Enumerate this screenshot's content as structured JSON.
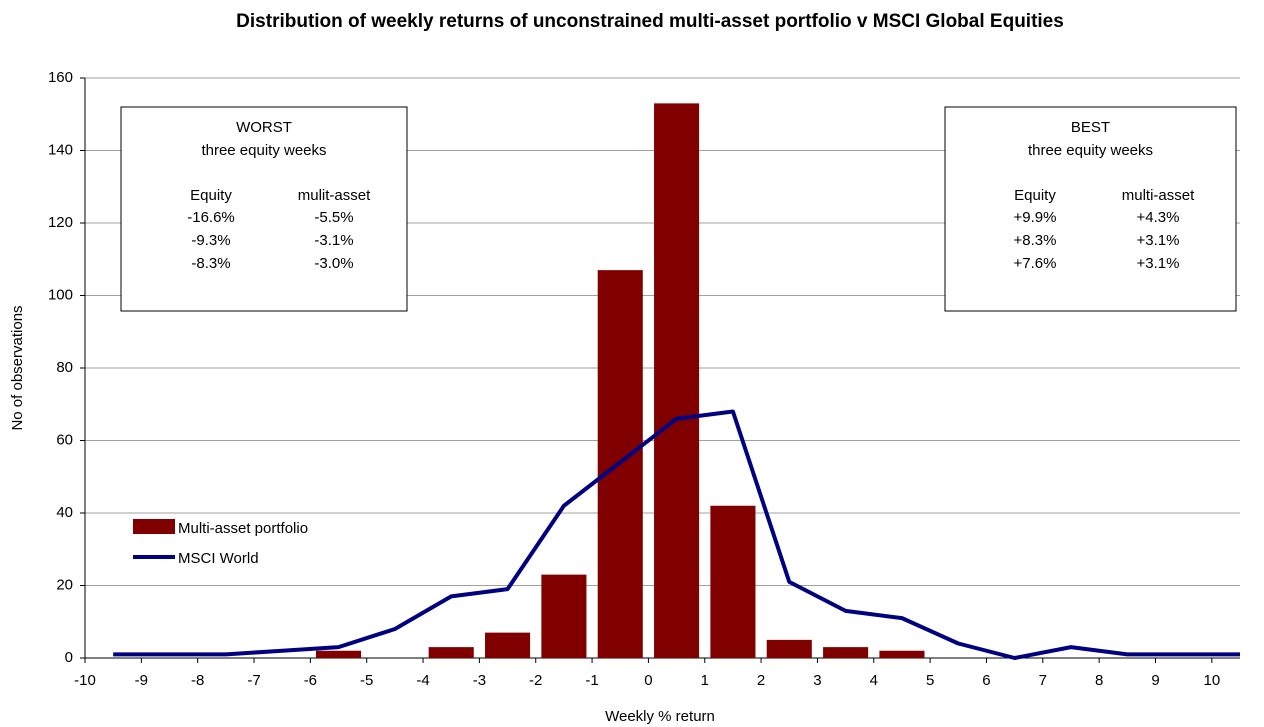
{
  "chart_data": {
    "type": "bar",
    "title": "Distribution of weekly returns of unconstrained multi-asset portfolio  v MSCI Global Equities",
    "x_label": "Weekly % return",
    "y_label": "No of observations",
    "xlim": [
      -10,
      10.5
    ],
    "xticks": [
      -10,
      -9,
      -8,
      -7,
      -6,
      -5,
      -4,
      -3,
      -2,
      -1,
      0,
      1,
      2,
      3,
      4,
      5,
      6,
      7,
      8,
      9,
      10
    ],
    "ylim": [
      0,
      160
    ],
    "yticks": [
      0,
      20,
      40,
      60,
      80,
      100,
      120,
      140,
      160
    ],
    "grid": true,
    "legend": "lower left",
    "series": [
      {
        "name": "Multi-asset portfolio",
        "type": "bar",
        "color": "#800000",
        "x": [
          -5.5,
          -3.5,
          -2.5,
          -1.5,
          -0.5,
          0.5,
          1.5,
          2.5,
          3.5,
          4.5
        ],
        "values": [
          2,
          3,
          7,
          23,
          107,
          153,
          42,
          5,
          3,
          2
        ]
      },
      {
        "name": "MSCI World",
        "type": "line",
        "color": "#000080",
        "x": [
          -9.5,
          -8.5,
          -7.5,
          -6.5,
          -5.5,
          -4.5,
          -3.5,
          -2.5,
          -1.5,
          -0.5,
          0.5,
          1.5,
          2.5,
          3.5,
          4.5,
          5.5,
          6.5,
          7.5,
          8.5,
          9.5,
          10.5
        ],
        "values": [
          1,
          1,
          1,
          2,
          3,
          8,
          17,
          19,
          42,
          54,
          66,
          68,
          21,
          13,
          11,
          4,
          0,
          3,
          1,
          1,
          1
        ]
      }
    ],
    "annotations": [
      {
        "title": "WORST",
        "subtitle": "three equity weeks",
        "columns": [
          "Equity",
          "mulit-asset"
        ],
        "rows": [
          [
            "-16.6%",
            "-5.5%"
          ],
          [
            "-9.3%",
            "-3.1%"
          ],
          [
            "-8.3%",
            "-3.0%"
          ]
        ]
      },
      {
        "title": "BEST",
        "subtitle": "three equity weeks",
        "columns": [
          "Equity",
          "multi-asset"
        ],
        "rows": [
          [
            "+9.9%",
            "+4.3%"
          ],
          [
            "+8.3%",
            "+3.1%"
          ],
          [
            "+7.6%",
            "+3.1%"
          ]
        ]
      }
    ]
  }
}
